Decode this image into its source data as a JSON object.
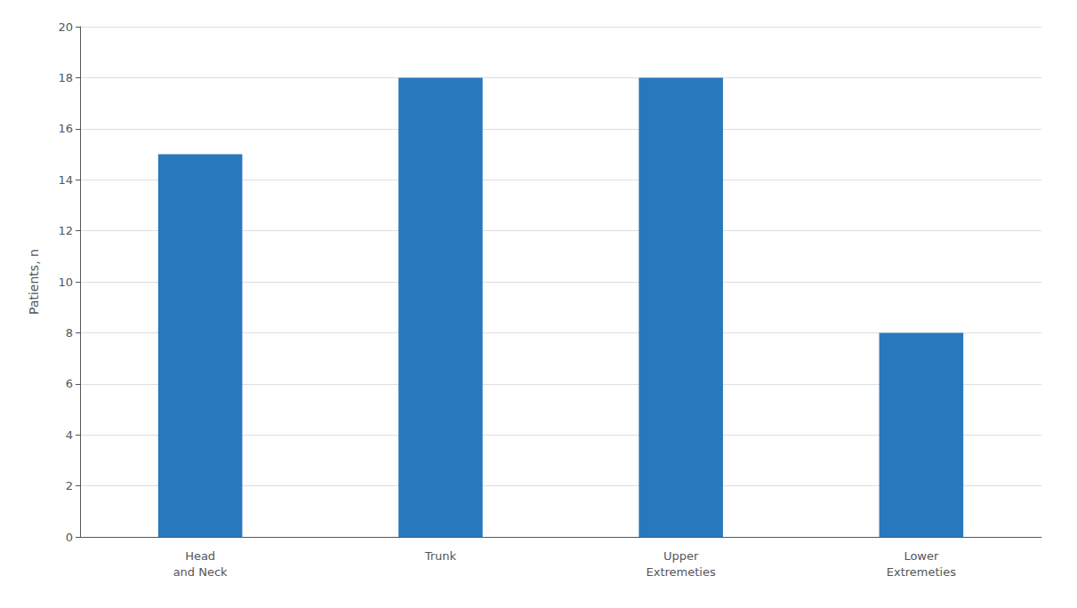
{
  "chart_data": {
    "type": "bar",
    "categories": [
      "Head\nand Neck",
      "Trunk",
      "Upper\nExtremeties",
      "Lower\nExtremeties"
    ],
    "values": [
      15,
      18,
      18,
      8
    ],
    "color": "#2878BE",
    "ylabel": "Patients, n",
    "ylim": [
      0,
      20
    ],
    "yticks": [
      0,
      2,
      4,
      6,
      8,
      10,
      12,
      14,
      16,
      18,
      20
    ],
    "grid": true
  }
}
